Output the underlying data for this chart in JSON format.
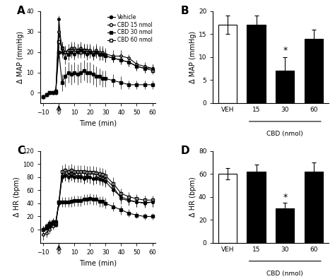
{
  "panel_A": {
    "label": "A",
    "xlabel": "Time (min)",
    "ylabel": "Δ MAP (mmHg)",
    "ylim": [
      -5,
      40
    ],
    "yticks": [
      0,
      10,
      20,
      30,
      40
    ],
    "xlim": [
      -12,
      62
    ],
    "xticks": [
      -10,
      0,
      10,
      20,
      30,
      40,
      50,
      60
    ],
    "time": [
      -10,
      -8,
      -6,
      -4,
      -2,
      0,
      2,
      4,
      6,
      8,
      10,
      12,
      14,
      16,
      18,
      20,
      22,
      24,
      26,
      28,
      30,
      35,
      40,
      45,
      50,
      55,
      60
    ],
    "vehicle": [
      -2,
      -1,
      0,
      0,
      0,
      36,
      20,
      17,
      19,
      20,
      19,
      20,
      21,
      20,
      19,
      20,
      19,
      20,
      19,
      19,
      18,
      17,
      16,
      15,
      13,
      12,
      12
    ],
    "cbd15": [
      -2,
      -1,
      0,
      0,
      0,
      30,
      22,
      20,
      21,
      22,
      22,
      21,
      22,
      21,
      21,
      21,
      20,
      21,
      20,
      20,
      19,
      18,
      18,
      17,
      14,
      13,
      12
    ],
    "cbd30": [
      -2,
      -1,
      0,
      0,
      1,
      20,
      5,
      8,
      10,
      9,
      10,
      9,
      10,
      11,
      10,
      10,
      9,
      8,
      8,
      7,
      7,
      6,
      5,
      4,
      4,
      4,
      4
    ],
    "cbd60": [
      -2,
      -1,
      0,
      0,
      0,
      25,
      22,
      20,
      19,
      21,
      20,
      21,
      20,
      21,
      20,
      20,
      19,
      20,
      19,
      19,
      18,
      17,
      16,
      15,
      13,
      12,
      11
    ],
    "vehicle_err": [
      1,
      1,
      1,
      1,
      1,
      2,
      3,
      3,
      3,
      3,
      3,
      3,
      3,
      3,
      3,
      3,
      3,
      3,
      3,
      3,
      3,
      2,
      2,
      2,
      2,
      2,
      2
    ],
    "cbd15_err": [
      1,
      1,
      1,
      1,
      1,
      3,
      3,
      3,
      3,
      3,
      3,
      3,
      3,
      3,
      3,
      3,
      3,
      3,
      3,
      3,
      3,
      3,
      3,
      2,
      2,
      2,
      2
    ],
    "cbd30_err": [
      1,
      1,
      1,
      1,
      1,
      3,
      4,
      5,
      5,
      5,
      5,
      5,
      5,
      5,
      5,
      5,
      5,
      5,
      4,
      4,
      4,
      3,
      3,
      2,
      2,
      2,
      2
    ],
    "cbd60_err": [
      1,
      1,
      1,
      1,
      1,
      3,
      3,
      3,
      3,
      3,
      3,
      3,
      3,
      3,
      3,
      3,
      3,
      3,
      3,
      3,
      3,
      2,
      2,
      2,
      2,
      2,
      2
    ]
  },
  "panel_B": {
    "label": "B",
    "xlabel": "CBD (nmol)",
    "ylabel": "Δ MAP (mmHg)",
    "ylim": [
      0,
      20
    ],
    "yticks": [
      0,
      5,
      10,
      15,
      20
    ],
    "categories": [
      "VEH",
      "15",
      "30",
      "60"
    ],
    "values": [
      17,
      17,
      7,
      14
    ],
    "errors": [
      2,
      2,
      3,
      2
    ],
    "bar_colors": [
      "white",
      "black",
      "black",
      "black"
    ],
    "star_at": 2
  },
  "panel_C": {
    "label": "C",
    "xlabel": "Time (min)",
    "ylabel": "Δ HR (bpm)",
    "ylim": [
      -20,
      120
    ],
    "yticks": [
      0,
      20,
      40,
      60,
      80,
      100,
      120
    ],
    "xlim": [
      -12,
      62
    ],
    "xticks": [
      -10,
      0,
      10,
      20,
      30,
      40,
      50,
      60
    ],
    "time": [
      -10,
      -8,
      -6,
      -4,
      -2,
      0,
      2,
      4,
      6,
      8,
      10,
      12,
      14,
      16,
      18,
      20,
      22,
      24,
      26,
      28,
      30,
      35,
      40,
      45,
      50,
      55,
      60
    ],
    "vehicle": [
      0,
      5,
      10,
      12,
      12,
      40,
      80,
      82,
      80,
      82,
      80,
      80,
      80,
      78,
      80,
      80,
      78,
      78,
      76,
      75,
      73,
      60,
      50,
      45,
      42,
      40,
      42
    ],
    "cbd15": [
      -8,
      -5,
      0,
      5,
      10,
      40,
      82,
      84,
      83,
      85,
      83,
      82,
      82,
      80,
      82,
      80,
      78,
      80,
      80,
      79,
      77,
      65,
      47,
      44,
      42,
      41,
      42
    ],
    "cbd30": [
      0,
      2,
      5,
      7,
      8,
      42,
      42,
      42,
      42,
      43,
      44,
      44,
      44,
      46,
      46,
      47,
      46,
      46,
      43,
      43,
      40,
      35,
      30,
      25,
      22,
      20,
      20
    ],
    "cbd60": [
      0,
      5,
      10,
      12,
      12,
      42,
      88,
      90,
      88,
      90,
      88,
      88,
      88,
      88,
      87,
      87,
      87,
      86,
      85,
      84,
      82,
      70,
      55,
      50,
      47,
      45,
      45
    ],
    "vehicle_err": [
      5,
      5,
      5,
      5,
      5,
      5,
      8,
      8,
      8,
      8,
      8,
      8,
      8,
      8,
      8,
      8,
      8,
      8,
      8,
      8,
      8,
      8,
      8,
      7,
      7,
      7,
      7
    ],
    "cbd15_err": [
      8,
      7,
      6,
      5,
      5,
      5,
      10,
      10,
      10,
      10,
      10,
      10,
      10,
      10,
      10,
      10,
      10,
      10,
      10,
      10,
      10,
      8,
      8,
      7,
      7,
      7,
      7
    ],
    "cbd30_err": [
      5,
      5,
      5,
      5,
      5,
      5,
      8,
      8,
      8,
      8,
      8,
      8,
      8,
      8,
      8,
      8,
      8,
      8,
      8,
      8,
      8,
      7,
      7,
      6,
      5,
      5,
      5
    ],
    "cbd60_err": [
      5,
      5,
      5,
      5,
      5,
      5,
      10,
      10,
      10,
      10,
      10,
      10,
      10,
      10,
      10,
      10,
      10,
      10,
      10,
      10,
      10,
      10,
      8,
      7,
      7,
      7,
      7
    ]
  },
  "panel_D": {
    "label": "D",
    "xlabel": "CBD (nmol)",
    "ylabel": "Δ HR (bpm)",
    "ylim": [
      0,
      80
    ],
    "yticks": [
      0,
      20,
      40,
      60,
      80
    ],
    "categories": [
      "VEH",
      "15",
      "30",
      "60"
    ],
    "values": [
      60,
      62,
      30,
      62
    ],
    "errors": [
      5,
      6,
      5,
      8
    ],
    "bar_colors": [
      "white",
      "black",
      "black",
      "black"
    ],
    "star_at": 2
  },
  "legend": {
    "entries": [
      "Vehicle",
      "CBD 15 nmol",
      "CBD 30 nmol",
      "CBD 60 nmol"
    ],
    "markers": [
      "o",
      "o",
      "s",
      "s"
    ],
    "filled": [
      true,
      false,
      true,
      false
    ]
  }
}
